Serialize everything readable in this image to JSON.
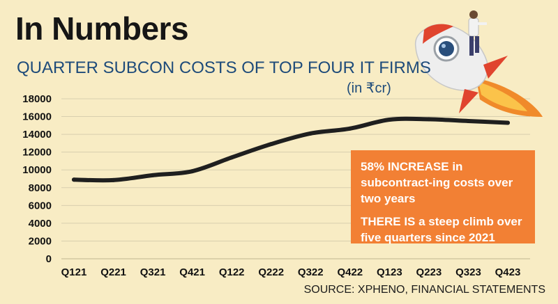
{
  "header": {
    "title": "In Numbers",
    "subtitle": "QUARTER SUBCON COSTS OF TOP FOUR IT FIRMS",
    "unit": "(in ₹cr)"
  },
  "callout": {
    "line1": "58% INCREASE in subcontract-ing costs over two years",
    "line2": "THERE IS a steep climb over five quarters since 2021"
  },
  "source": "SOURCE: XPHENO, FINANCIAL STATEMENTS",
  "colors": {
    "background": "#f8ecc4",
    "line": "#1f1f1f",
    "callout": "#f28034",
    "subtitle": "#1e4b7a"
  },
  "illustration": {
    "icon": "rocket-with-rider-icon"
  },
  "chart_data": {
    "type": "line",
    "title": "QUARTER SUBCON COSTS OF TOP FOUR IT FIRMS",
    "xlabel": "",
    "ylabel": "",
    "ylim": [
      0,
      18000
    ],
    "yticks": [
      0,
      2000,
      4000,
      6000,
      8000,
      10000,
      12000,
      14000,
      16000,
      18000
    ],
    "categories": [
      "Q121",
      "Q221",
      "Q321",
      "Q421",
      "Q122",
      "Q222",
      "Q322",
      "Q422",
      "Q123",
      "Q223",
      "Q323",
      "Q423"
    ],
    "series": [
      {
        "values": [
          8900,
          8850,
          9400,
          9850,
          11400,
          12900,
          14100,
          14650,
          15650,
          15700,
          15500,
          15300
        ]
      }
    ],
    "grid": true,
    "legend": "none"
  }
}
